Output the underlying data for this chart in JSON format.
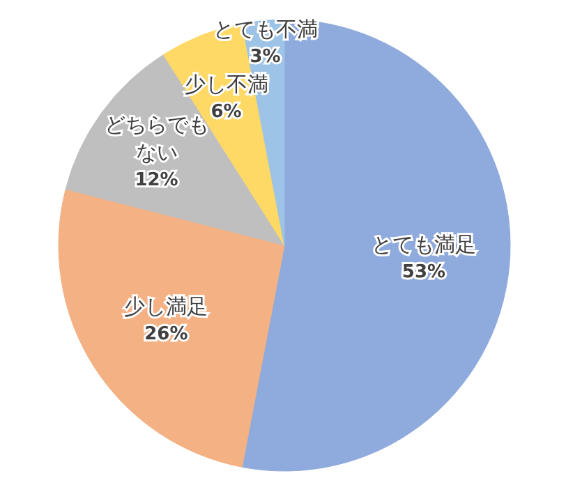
{
  "chart_data": {
    "type": "pie",
    "categories": [
      "とても満足",
      "少し満足",
      "どちらでもない",
      "少し不満",
      "とても不満"
    ],
    "values": [
      53,
      26,
      12,
      6,
      3
    ],
    "colors": [
      "#8faadc",
      "#f4b183",
      "#bfbfbf",
      "#ffd966",
      "#9dc3e6"
    ],
    "value_labels": [
      "53%",
      "26%",
      "12%",
      "6%",
      "3%"
    ]
  }
}
